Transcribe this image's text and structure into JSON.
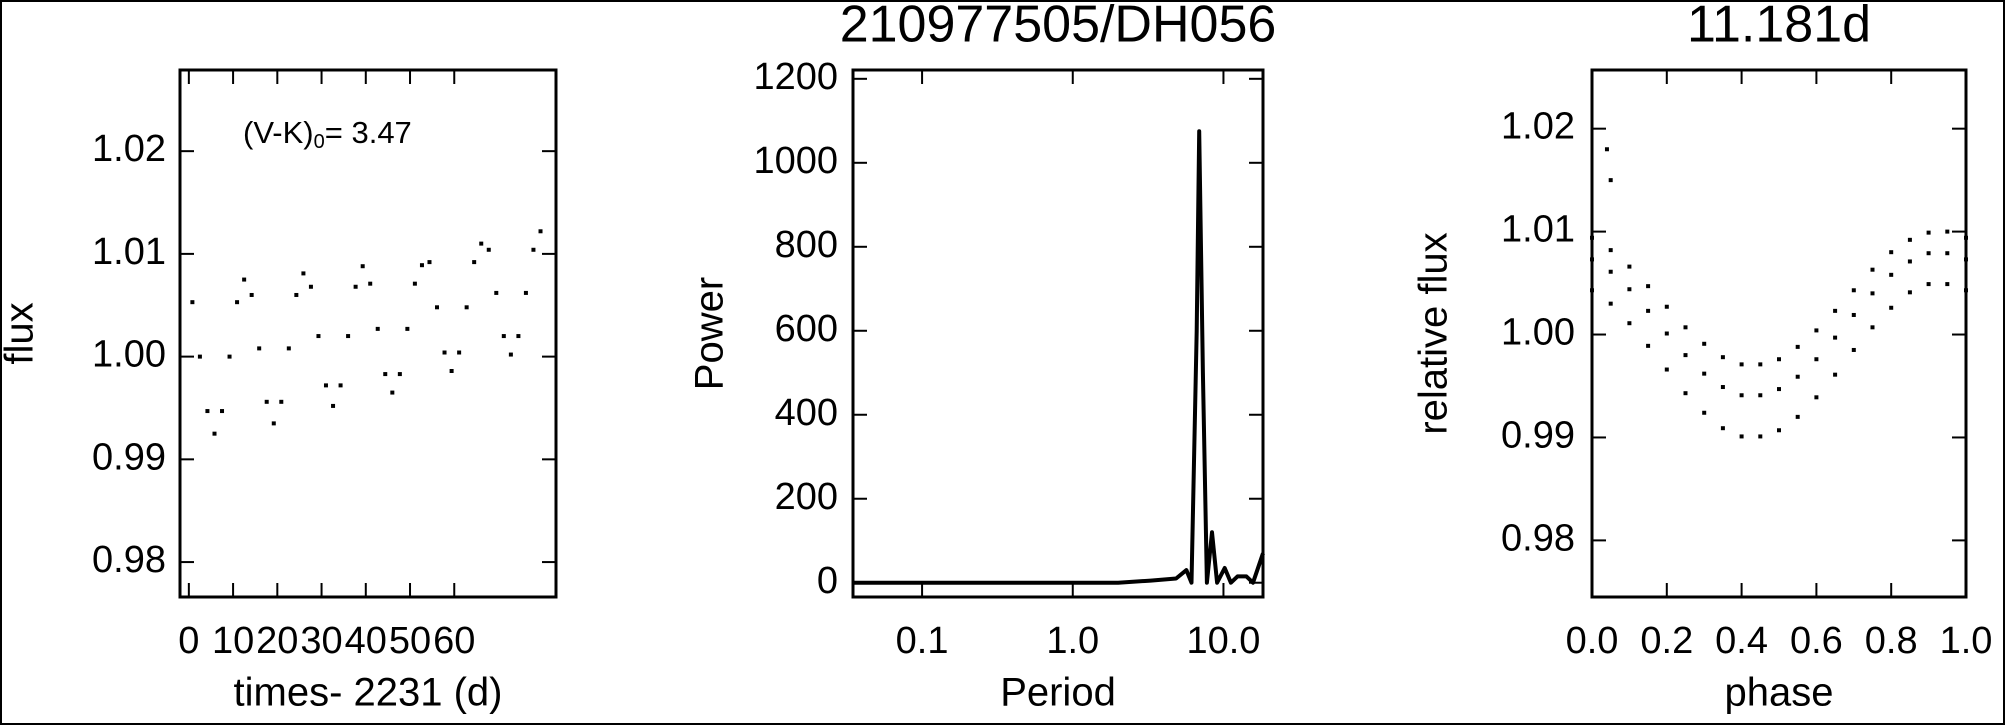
{
  "chart_data": [
    {
      "type": "scatter",
      "xlabel": "times- 2231 (d)",
      "ylabel": "flux",
      "annotation": {
        "text": "(V-K)",
        "sub": "0",
        "rest": "= 3.47"
      },
      "color": "#000000",
      "xlim": [
        -2,
        83
      ],
      "xticks": [
        0,
        10,
        20,
        30,
        40,
        50,
        60
      ],
      "ylim": [
        0.9766,
        1.0279
      ],
      "yticks": [
        {
          "value": 0.98,
          "label": "0.98"
        },
        {
          "value": 0.99,
          "label": "0.99"
        },
        {
          "value": 1.0,
          "label": "1.00"
        },
        {
          "value": 1.01,
          "label": "1.01"
        },
        {
          "value": 1.02,
          "label": "1.02"
        }
      ],
      "x": [
        0.8,
        2.5,
        4.2,
        5.8,
        7.5,
        9.2,
        10.9,
        12.5,
        14.2,
        15.9,
        17.6,
        19.2,
        20.9,
        22.6,
        24.3,
        25.9,
        27.6,
        29.3,
        31.0,
        32.6,
        34.3,
        36.0,
        37.7,
        39.3,
        41.0,
        42.7,
        44.4,
        46.0,
        47.7,
        49.4,
        51.1,
        52.7,
        54.4,
        56.1,
        57.8,
        59.4,
        61.1,
        62.8,
        64.5,
        66.1,
        67.8,
        69.5,
        71.2,
        72.8,
        74.5,
        76.2,
        77.9,
        79.5
      ],
      "values": [
        1.0053,
        1.0,
        0.9947,
        0.9925,
        0.9947,
        1.0,
        1.0053,
        1.0075,
        1.006,
        1.0008,
        0.9956,
        0.9935,
        0.9956,
        1.0008,
        1.006,
        1.0081,
        1.0068,
        1.002,
        0.9972,
        0.9952,
        0.9972,
        1.002,
        1.0068,
        1.0088,
        1.0071,
        1.0027,
        0.9983,
        0.9965,
        0.9983,
        1.0027,
        1.0071,
        1.0089,
        1.0092,
        1.0048,
        1.0004,
        0.9986,
        1.0004,
        1.0048,
        1.0092,
        1.011,
        1.0104,
        1.0062,
        1.002,
        1.0002,
        1.002,
        1.0062,
        1.0104,
        1.0122
      ]
    },
    {
      "type": "line",
      "title": "210977505/DH056",
      "xlabel": "Period",
      "ylabel": "Power",
      "xlog": true,
      "color": "#000000",
      "xlim": [
        0.0348,
        18.3
      ],
      "xticks": [
        0.1,
        {
          "value": 1,
          "label": "1.0"
        },
        {
          "value": 10,
          "label": "10.0"
        }
      ],
      "ylim": [
        -34,
        1221
      ],
      "yticks": [
        0,
        200,
        400,
        600,
        800,
        1000,
        1200
      ],
      "x": [
        0.035,
        0.1,
        1,
        2,
        3.29,
        4.85,
        5.68,
        6.14,
        6.64,
        6.9,
        7.31,
        7.76,
        8.39,
        9.08,
        10.2,
        11.2,
        12.4,
        14.2,
        15.7,
        18.3
      ],
      "values": [
        0,
        0,
        0,
        0,
        5,
        10,
        30,
        0,
        600,
        1075,
        500,
        0,
        120,
        0,
        35,
        0,
        15,
        15,
        0,
        70
      ]
    },
    {
      "type": "scatter",
      "title": "11.181d",
      "xlabel": "phase",
      "ylabel": "relative flux",
      "color": "#000000",
      "xlim": [
        0,
        1
      ],
      "xticks": [
        {
          "value": 0,
          "label": "0.0"
        },
        0.2,
        0.4,
        0.6,
        0.8,
        {
          "value": 1,
          "label": "1.0"
        }
      ],
      "ylim": [
        0.9745,
        1.0257
      ],
      "yticks": [
        {
          "value": 0.98,
          "label": "0.98"
        },
        {
          "value": 0.99,
          "label": "0.99"
        },
        {
          "value": 1.0,
          "label": "1.00"
        },
        {
          "value": 1.01,
          "label": "1.01"
        },
        {
          "value": 1.02,
          "label": "1.02"
        }
      ],
      "x": [
        0,
        0.05,
        0.1,
        0.15,
        0.2,
        0.25,
        0.3,
        0.35,
        0.4,
        0.45,
        0.5,
        0.55,
        0.6,
        0.65,
        0.7,
        0.75,
        0.8,
        0.85,
        0.9,
        0.95,
        1,
        0,
        0.05,
        0.1,
        0.15,
        0.2,
        0.25,
        0.3,
        0.35,
        0.4,
        0.45,
        0.5,
        0.55,
        0.6,
        0.65,
        0.7,
        0.75,
        0.8,
        0.85,
        0.9,
        0.95,
        1,
        0,
        0.05,
        0.1,
        0.15,
        0.2,
        0.25,
        0.3,
        0.35,
        0.4,
        0.45,
        0.5,
        0.55,
        0.6,
        0.65,
        0.7,
        0.75,
        0.8,
        0.85,
        0.9,
        0.95,
        1,
        0.04,
        0.05
      ],
      "values": [
        1.0094,
        1.0082,
        1.0066,
        1.0047,
        1.0027,
        1.0007,
        0.9991,
        0.9978,
        0.9971,
        0.9971,
        0.9976,
        0.9988,
        1.0004,
        1.0023,
        1.0043,
        1.0063,
        1.008,
        1.0092,
        1.0099,
        1.01,
        1.0094,
        1.0073,
        1.0061,
        1.0044,
        1.0023,
        1.0001,
        0.998,
        0.9962,
        0.9949,
        0.9941,
        0.9941,
        0.9947,
        0.9959,
        0.9976,
        0.9997,
        1.0019,
        1.004,
        1.0058,
        1.0071,
        1.0079,
        1.0079,
        1.0073,
        1.0043,
        1.003,
        1.0011,
        0.9989,
        0.9966,
        0.9943,
        0.9924,
        0.9909,
        0.9901,
        0.9901,
        0.9907,
        0.992,
        0.9939,
        0.9961,
        0.9985,
        1.0007,
        1.0026,
        1.0041,
        1.0049,
        1.0049,
        1.0043,
        1.018,
        1.015
      ]
    }
  ]
}
